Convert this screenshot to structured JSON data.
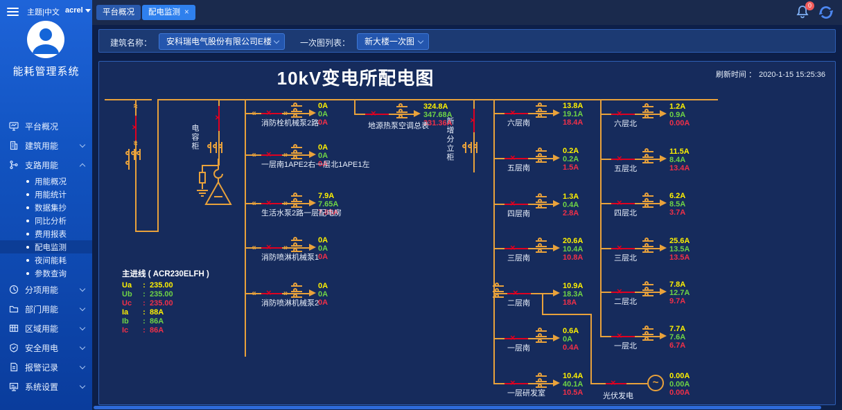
{
  "topbar": {
    "theme": "主题|中文",
    "user": "acrel",
    "tabs": [
      {
        "label": "平台概况"
      },
      {
        "label": "配电监测"
      }
    ],
    "badge": "0"
  },
  "sidebar": {
    "app_title": "能耗管理系统",
    "items": [
      {
        "label": "平台概况"
      },
      {
        "label": "建筑用能",
        "expandable": true
      },
      {
        "label": "支路用能",
        "expanded": true
      },
      {
        "label": "分项用能",
        "expandable": true
      },
      {
        "label": "部门用能",
        "expandable": true
      },
      {
        "label": "区域用能",
        "expandable": true
      },
      {
        "label": "安全用电",
        "expandable": true
      },
      {
        "label": "报警记录",
        "expandable": true
      },
      {
        "label": "系统设置",
        "expandable": true
      }
    ],
    "sub": [
      {
        "label": "用能概况"
      },
      {
        "label": "用能统计"
      },
      {
        "label": "数据集抄"
      },
      {
        "label": "同比分析"
      },
      {
        "label": "费用报表"
      },
      {
        "label": "配电监测",
        "active": true
      },
      {
        "label": "夜间能耗"
      },
      {
        "label": "参数查询"
      }
    ]
  },
  "filters": {
    "building_label": "建筑名称：",
    "building_value": "安科瑞电气股份有限公司E楼",
    "diagram_label": "一次图列表：",
    "diagram_value": "新大楼一次图"
  },
  "diagram": {
    "title": "10kV变电所配电图",
    "refresh_label": "刷新时间 ：",
    "refresh_time": "2020-1-15 15:25:36",
    "capacitor_cabinet": "电容柜",
    "new_cabinet": "新增分立柜",
    "main_line": {
      "title": "主进线 ( ACR230ELFH )",
      "rows": [
        {
          "name": "Ua",
          "value": "235.00"
        },
        {
          "name": "Ub",
          "value": "235.00"
        },
        {
          "name": "Uc",
          "value": "235.00"
        },
        {
          "name": "Ia",
          "value": "88A"
        },
        {
          "name": "Ib",
          "value": "86A"
        },
        {
          "name": "Ic",
          "value": "86A"
        }
      ]
    },
    "heat_pump": {
      "label": "地源热泵空调总表",
      "values": [
        "324.8A",
        "347.68A",
        "331.36A"
      ]
    },
    "middle": [
      {
        "label": "消防栓机械泵2路",
        "values": [
          "0A",
          "0A",
          "0A"
        ]
      },
      {
        "label": "一层南1APE2右一层北1APE1左",
        "values": [
          "0A",
          "0A",
          "0A"
        ]
      },
      {
        "label": "生活水泵2路一层配电房",
        "values": [
          "7.9A",
          "7.65A",
          "7.85A"
        ]
      },
      {
        "label": "消防喷淋机械泵1",
        "values": [
          "0A",
          "0A",
          "0A"
        ]
      },
      {
        "label": "消防喷淋机械泵2",
        "values": [
          "0A",
          "0A",
          "0A"
        ]
      }
    ],
    "south": [
      {
        "label": "六层南",
        "values": [
          "13.8A",
          "19.1A",
          "18.4A"
        ]
      },
      {
        "label": "五层南",
        "values": [
          "0.2A",
          "0.2A",
          "1.5A"
        ]
      },
      {
        "label": "四层南",
        "values": [
          "1.3A",
          "0.4A",
          "2.8A"
        ]
      },
      {
        "label": "三层南",
        "values": [
          "20.6A",
          "10.4A",
          "10.8A"
        ]
      },
      {
        "label": "二层南",
        "values": [
          "10.9A",
          "18.3A",
          "18A"
        ]
      },
      {
        "label": "一层南",
        "values": [
          "0.6A",
          "0A",
          "0.4A"
        ]
      },
      {
        "label": "一层研发室",
        "values": [
          "10.4A",
          "40.1A",
          "10.5A"
        ]
      }
    ],
    "north": [
      {
        "label": "六层北",
        "values": [
          "1.2A",
          "0.9A",
          "0.00A"
        ]
      },
      {
        "label": "五层北",
        "values": [
          "11.5A",
          "8.4A",
          "13.4A"
        ]
      },
      {
        "label": "四层北",
        "values": [
          "6.2A",
          "8.5A",
          "3.7A"
        ]
      },
      {
        "label": "三层北",
        "values": [
          "25.6A",
          "13.5A",
          "13.5A"
        ]
      },
      {
        "label": "二层北",
        "values": [
          "7.8A",
          "12.7A",
          "9.7A"
        ]
      },
      {
        "label": "一层北",
        "values": [
          "7.7A",
          "7.6A",
          "6.7A"
        ]
      }
    ],
    "pv": {
      "label": "光伏发电",
      "values": [
        "0.00A",
        "0.00A",
        "0.00A"
      ]
    }
  },
  "colors": {
    "accent": "#2F80ED",
    "diagram_line": "#E9A23B",
    "breaker_red": "#E00020",
    "phase_a_yellow": "#FFF100",
    "phase_b_green": "#6FD445",
    "phase_c_red": "#F03048"
  }
}
